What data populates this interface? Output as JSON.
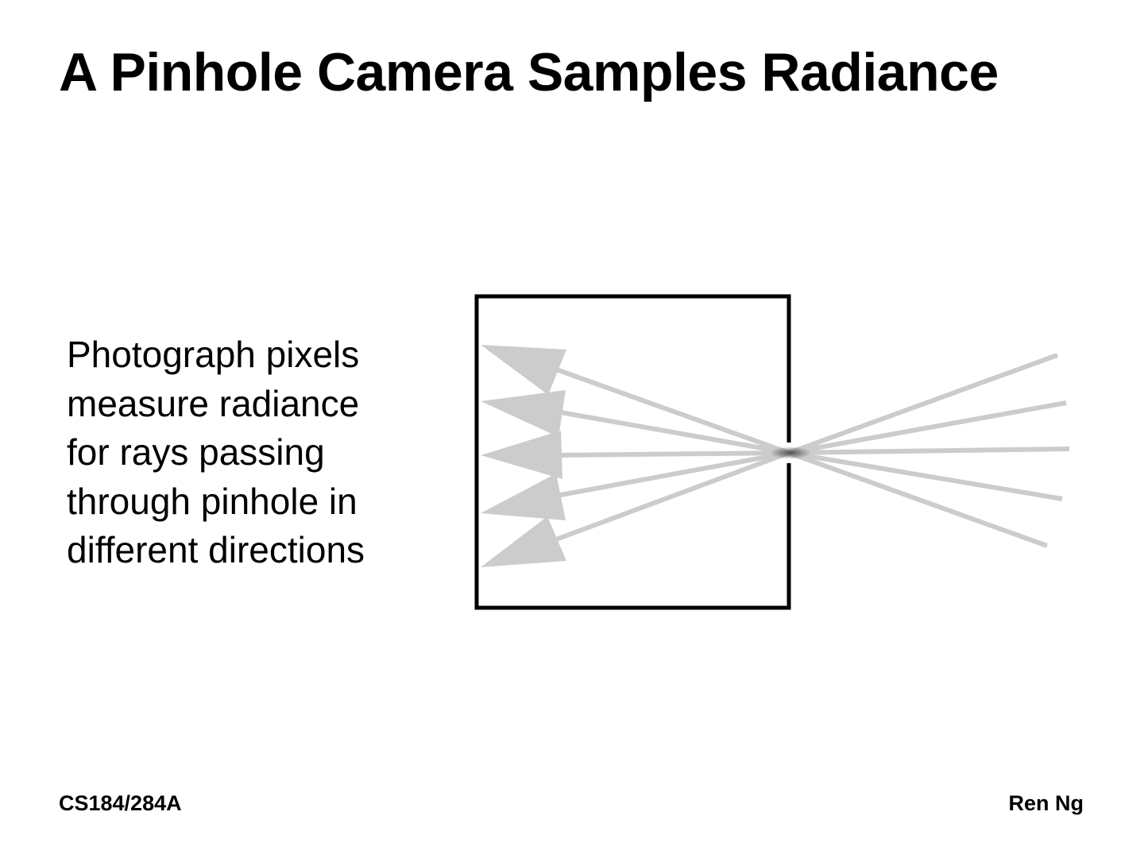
{
  "slide": {
    "title": "A Pinhole Camera Samples Radiance",
    "body_lines": [
      "Photograph pixels",
      "measure radiance",
      "for rays passing",
      "through pinhole in",
      "different directions"
    ],
    "footer_left": "CS184/284A",
    "footer_right": "Ren Ng"
  },
  "diagram": {
    "ray_count": 5,
    "ray_color": "#cccccc",
    "camera_color": "#000000",
    "pinhole_glow_color": "#555555"
  }
}
